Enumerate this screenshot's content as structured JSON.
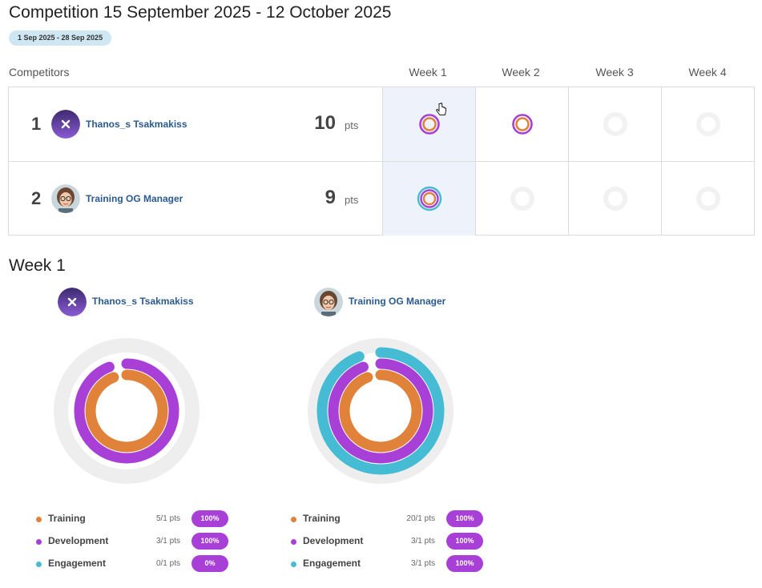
{
  "page": {
    "title": "Competition 15 September 2025 - 12 October 2025",
    "date_range": "1 Sep 2025 - 28 Sep 2025"
  },
  "table": {
    "competitors_label": "Competitors",
    "weeks": [
      "Week 1",
      "Week 2",
      "Week 3",
      "Week 4"
    ],
    "pts_label": "pts",
    "rows": [
      {
        "rank": "1",
        "name": "Thanos_s Tsakmakiss",
        "points": "10",
        "avatar_icon": "purple-x-avatar",
        "week_status": [
          "training-development",
          "training-development",
          "empty",
          "empty"
        ]
      },
      {
        "rank": "2",
        "name": "Training OG Manager",
        "points": "9",
        "avatar_icon": "woman-glasses-avatar",
        "week_status": [
          "training-development-engagement",
          "empty",
          "empty",
          "empty"
        ]
      }
    ]
  },
  "week_detail": {
    "title": "Week 1",
    "competitors": [
      {
        "name": "Thanos_s Tsakmakiss",
        "avatar_icon": "purple-x-avatar",
        "legend": [
          {
            "label": "Training",
            "pts": "5/1 pts",
            "percent": "100%",
            "fraction": 1.0
          },
          {
            "label": "Development",
            "pts": "3/1 pts",
            "percent": "100%",
            "fraction": 1.0
          },
          {
            "label": "Engagement",
            "pts": "0/1 pts",
            "percent": "0%",
            "fraction": 0.0
          }
        ]
      },
      {
        "name": "Training OG Manager",
        "avatar_icon": "woman-glasses-avatar",
        "legend": [
          {
            "label": "Training",
            "pts": "20/1 pts",
            "percent": "100%",
            "fraction": 1.0
          },
          {
            "label": "Development",
            "pts": "3/1 pts",
            "percent": "100%",
            "fraction": 1.0
          },
          {
            "label": "Engagement",
            "pts": "3/1 pts",
            "percent": "100%",
            "fraction": 1.0
          }
        ]
      }
    ]
  },
  "colors": {
    "training": "#e0823a",
    "development": "#a83fd6",
    "engagement": "#45bcd4",
    "track": "#eeeeee",
    "name_link": "#2a5a8e",
    "badge_bg": "#cfe7f3",
    "active_cell": "#eef3fb"
  }
}
